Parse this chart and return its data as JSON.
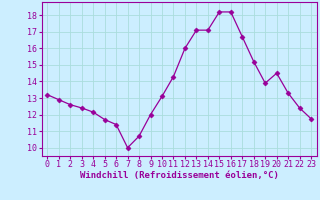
{
  "x": [
    0,
    1,
    2,
    3,
    4,
    5,
    6,
    7,
    8,
    9,
    10,
    11,
    12,
    13,
    14,
    15,
    16,
    17,
    18,
    19,
    20,
    21,
    22,
    23
  ],
  "y": [
    13.2,
    12.9,
    12.6,
    12.4,
    12.15,
    11.7,
    11.4,
    10.0,
    10.7,
    12.0,
    13.1,
    14.3,
    16.0,
    17.1,
    17.1,
    18.2,
    18.2,
    16.7,
    15.2,
    13.9,
    14.5,
    13.3,
    12.4,
    11.75
  ],
  "line_color": "#990099",
  "marker": "D",
  "marker_size": 2.5,
  "bg_color": "#cceeff",
  "grid_color": "#aadddd",
  "xlabel": "Windchill (Refroidissement éolien,°C)",
  "xlabel_color": "#990099",
  "tick_color": "#990099",
  "ylim": [
    9.5,
    18.8
  ],
  "xlim": [
    -0.5,
    23.5
  ],
  "yticks": [
    10,
    11,
    12,
    13,
    14,
    15,
    16,
    17,
    18
  ],
  "xticks": [
    0,
    1,
    2,
    3,
    4,
    5,
    6,
    7,
    8,
    9,
    10,
    11,
    12,
    13,
    14,
    15,
    16,
    17,
    18,
    19,
    20,
    21,
    22,
    23
  ],
  "spine_color": "#990099",
  "tick_fontsize": 6,
  "xlabel_fontsize": 6.5
}
